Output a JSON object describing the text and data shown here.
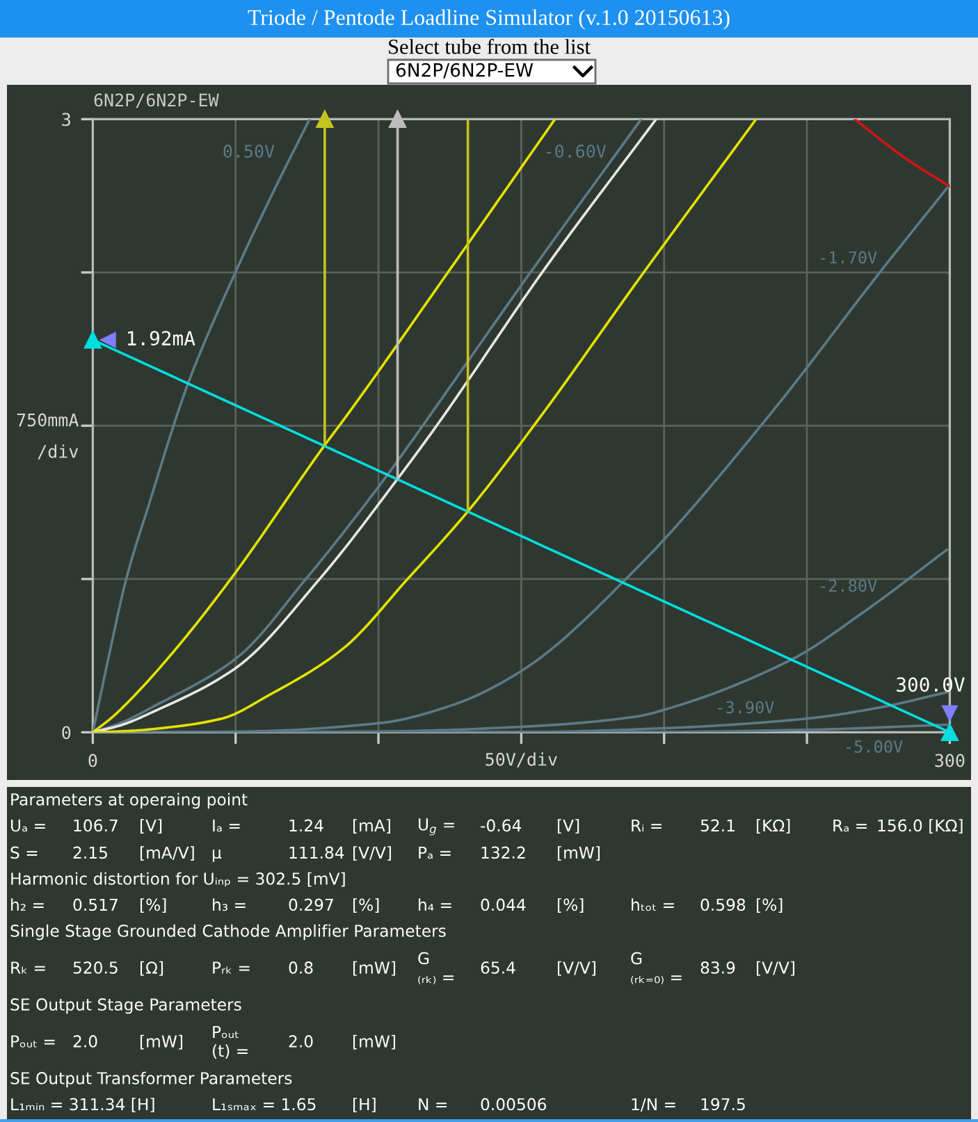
{
  "chart_data": [
    {
      "type": "line",
      "title": "Triode / Pentode Loadline Simulator (v.1.0 20150613)",
      "subtitle": "Select tube from the list",
      "xlabel": "50V/div",
      "ylabel": "750mmA\n/div",
      "xlim": [
        0,
        300
      ],
      "ylim": [
        0,
        3
      ],
      "xticks": [
        0,
        {
          "value": 50,
          "label": null
        },
        {
          "value": 100,
          "label": null
        },
        {
          "value": 150,
          "label": null
        },
        {
          "value": 200,
          "label": null
        },
        {
          "value": 250,
          "label": null
        },
        300
      ],
      "yticks": [
        0,
        {
          "value": 0.75,
          "label": null
        },
        {
          "value": 1.5,
          "label": null
        },
        {
          "value": 2.25,
          "label": null
        },
        3
      ],
      "grid": true,
      "annotations": [
        "6N2P/6N2P-EW",
        "6N2P/6N2P-EW",
        {
          "text": "1.92mA",
          "x": 0,
          "y": 1.92
        },
        {
          "text": "300.0V",
          "x": 300,
          "y": 0
        }
      ],
      "series": [
        {
          "name": "0.50V",
          "color": "#5b7a88",
          "x": [
            0,
            6.2,
            11.7,
            20,
            29.2,
            33.7,
            49.9,
            62,
            75.9
          ],
          "values": [
            0,
            0.41,
            0.75,
            1.13,
            1.54,
            1.72,
            2.25,
            2.61,
            3
          ]
        },
        {
          "name": "-0.60V",
          "color": "#5b7a88",
          "x": [
            0,
            9.7,
            21.1,
            50.3,
            74.6,
            102.1,
            117.5,
            131.3,
            153.2,
            192
          ],
          "values": [
            0,
            0.045,
            0.125,
            0.363,
            0.75,
            1.24,
            1.54,
            1.815,
            2.25,
            3
          ]
        },
        {
          "name": "-1.70V",
          "color": "#5b7a88",
          "x": [
            0,
            50,
            100.5,
            126.5,
            150,
            191.3,
            236.2,
            275.5,
            300
          ],
          "values": [
            0,
            0.003,
            0.045,
            0.136,
            0.3,
            0.816,
            1.54,
            2.25,
            2.68
          ]
        },
        {
          "name": "-2.80V",
          "color": "#5b7a88",
          "x": [
            0,
            100,
            150,
            191.1,
            200,
            244.9,
            270,
            299.1
          ],
          "values": [
            0,
            0.004,
            0.027,
            0.079,
            0.11,
            0.358,
            0.59,
            0.894
          ]
        },
        {
          "name": "-3.90V",
          "color": "#5b7a88",
          "x": [
            0,
            150,
            200,
            250,
            275,
            299.1
          ],
          "values": [
            0,
            0.001,
            0.02,
            0.067,
            0.12,
            0.196
          ]
        },
        {
          "name": "-5.00V",
          "color": "#5b7a88",
          "x": [
            0,
            200,
            250,
            299.1
          ],
          "values": [
            0,
            0.002,
            0.012,
            0.037
          ]
        },
        {
          "color": "#e2e200",
          "x": [
            0,
            6.5,
            14.6,
            29.2,
            48.3,
            81.2,
            88.4,
            124.3,
            161.8
          ],
          "values": [
            0,
            0.07,
            0.18,
            0.41,
            0.75,
            1.405,
            1.54,
            2.25,
            3
          ]
        },
        {
          "color": "#e6e6e6",
          "x": [
            0,
            9.7,
            21.1,
            50.3,
            79.4,
            106.7,
            122.4,
            131.3,
            157.3,
            197.2
          ],
          "values": [
            0,
            0.034,
            0.1,
            0.317,
            0.75,
            1.24,
            1.54,
            1.72,
            2.25,
            3
          ]
        },
        {
          "color": "#e2e200",
          "x": [
            0,
            13,
            25.9,
            45.4,
            61.6,
            87.5,
            110.2,
            131.3,
            156.5,
            191.3,
            232.2
          ],
          "values": [
            0,
            0.007,
            0.023,
            0.068,
            0.181,
            0.408,
            0.75,
            1.081,
            1.54,
            2.22,
            3
          ]
        },
        {
          "color": "#d01515",
          "x": [
            266.7,
            283.3,
            300
          ],
          "values": [
            3,
            2.82,
            2.67
          ]
        },
        {
          "color": "#00dede",
          "x": [
            0,
            300
          ],
          "values": [
            1.92,
            0
          ],
          "marker": "triangle"
        },
        {
          "color": "#c4c41e",
          "x": [
            81.2,
            81.2
          ],
          "values": [
            1.405,
            3
          ],
          "marker": "triangle"
        },
        {
          "color": "#bcbcbc",
          "x": [
            106.7,
            106.7
          ],
          "values": [
            1.24,
            3
          ],
          "marker": "triangle"
        },
        {
          "color": "#c4c41e",
          "x": [
            131.3,
            131.3
          ],
          "values": [
            1.081,
            3
          ]
        }
      ]
    },
    {
      "type": "other",
      "annotations": [
        "Parameters at operaing point",
        "Uₐ =\t106.7\t[V]\tIₐ =\t1.24\t[mA]\tU$_{g}$ =\t-0.64\t[V]\tRᵢ =\t52.1\t[KΩ]\tRₐ =\t156.0 [KΩ]",
        "S =\t2.15\t[mA/V]\tμ\t111.84\t[V/V]\tPₐ =\t132.2\t[mW]",
        "Harmonic distortion for Uᵢₙₚ = 302.5 [mV]",
        "h₂ =\t0.517\t[%]\th₃ =\t0.297\t[%]\th₄ =\t0.044\t[%]\thₜₒₜ =\t0.598\t[%]",
        "Single Stage Grounded Cathode Amplifier Parameters",
        "Rₖ =\t520.5\t[Ω]\tPᵣₖ =\t0.8\t[mW]\tG\n₍ᵣₖ₎ =\t65.4\t[V/V]\tG\n₍ᵣₖ₌₀₎ =\t83.9\t[V/V]",
        "SE Output Stage Parameters",
        "Pₒᵤₜ =\t2.0\t[mW]\tPₒᵤₜ\n(t) =\t2.0\t[mW]",
        "SE Output Transformer Parameters",
        "L₁ₘᵢₙ = 311.34 [H]\t\t\tL₁ₛₘₐₓ = 1.65\t\t[H]\tN =\t0.00506\t\t1/N =\t197.5"
      ]
    }
  ]
}
